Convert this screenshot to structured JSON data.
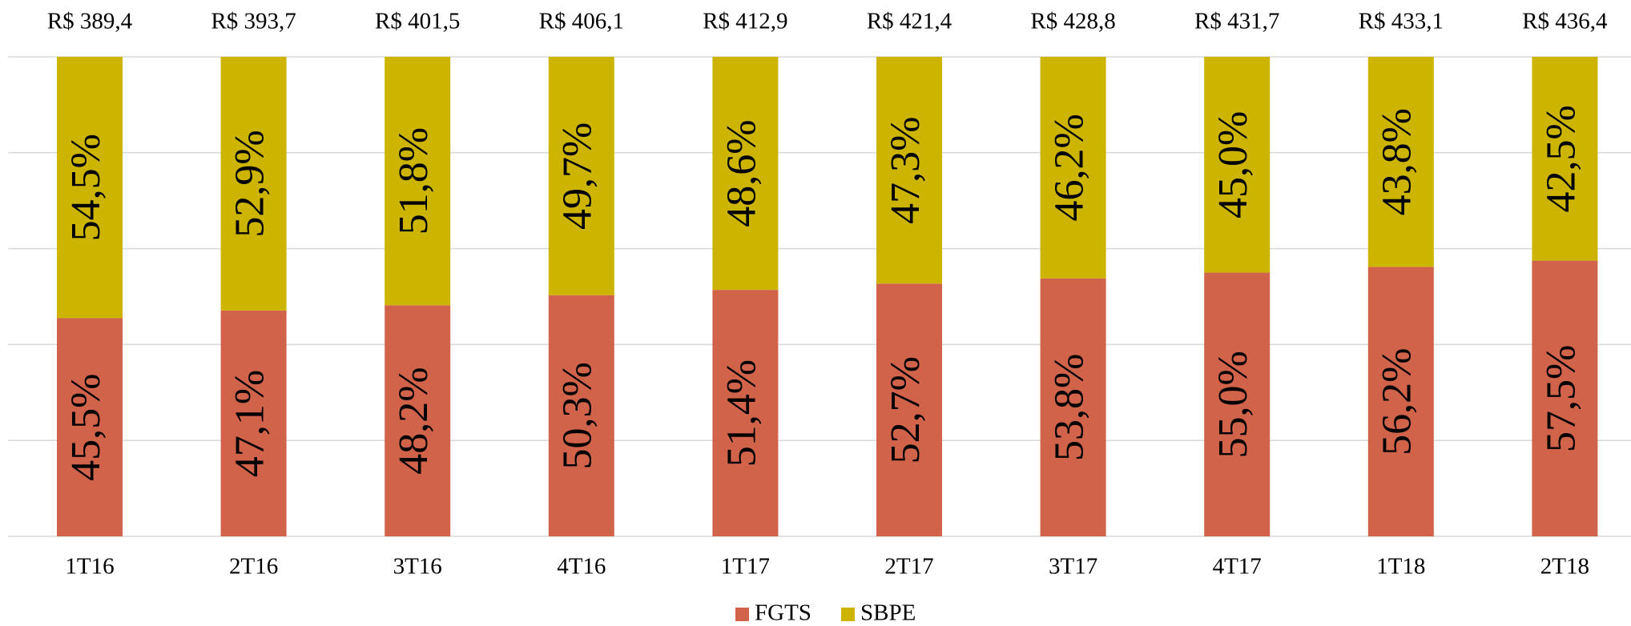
{
  "chart_data": {
    "type": "stacked_bar_100",
    "categories": [
      "1T16",
      "2T16",
      "3T16",
      "4T16",
      "1T17",
      "2T17",
      "3T17",
      "4T17",
      "1T18",
      "2T18"
    ],
    "series": [
      {
        "name": "FGTS",
        "color": "#d0634a",
        "values": [
          45.5,
          47.1,
          48.2,
          50.3,
          51.4,
          52.7,
          53.8,
          55.0,
          56.2,
          57.5
        ],
        "value_labels": [
          "45,5%",
          "47,1%",
          "48,2%",
          "50,3%",
          "51,4%",
          "52,7%",
          "53,8%",
          "55,0%",
          "56,2%",
          "57,5%"
        ]
      },
      {
        "name": "SBPE",
        "color": "#cdb400",
        "values": [
          54.5,
          52.9,
          51.8,
          49.7,
          48.6,
          47.3,
          46.2,
          45.0,
          43.8,
          42.5
        ],
        "value_labels": [
          "54,5%",
          "52,9%",
          "51,8%",
          "49,7%",
          "48,6%",
          "47,3%",
          "46,2%",
          "45,0%",
          "43,8%",
          "42,5%"
        ]
      }
    ],
    "totals": {
      "values": [
        389.4,
        393.7,
        401.5,
        406.1,
        412.9,
        421.4,
        428.8,
        431.7,
        433.1,
        436.4
      ],
      "value_labels": [
        "R$ 389,4",
        "R$ 393,7",
        "R$ 401,5",
        "R$ 406,1",
        "R$ 412,9",
        "R$ 421,4",
        "R$ 428,8",
        "R$ 431,7",
        "R$ 433,1",
        "R$ 436,4"
      ]
    },
    "ylim": [
      0,
      100
    ],
    "yticks": [
      0,
      20,
      40,
      60,
      80,
      100
    ],
    "grid": true,
    "legend": "bottom"
  }
}
